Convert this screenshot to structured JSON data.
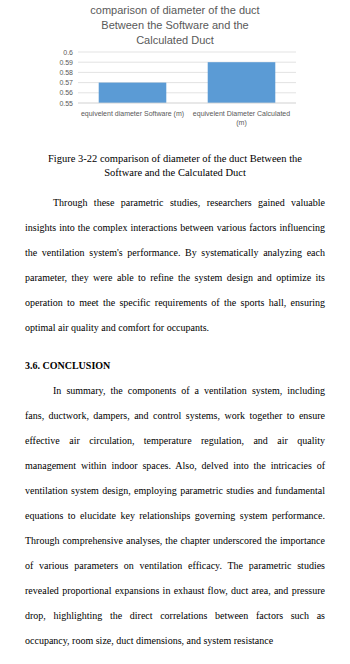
{
  "chart_data": {
    "type": "bar",
    "title": "comparison of diameter of the duct Between the Software and the Calculated Duct",
    "categories": [
      "equivelent diameter Software (m)",
      "equivelent Diameter Calculated (m)"
    ],
    "values": [
      0.57,
      0.59
    ],
    "color": "#5b9bd5",
    "ylim": [
      0.55,
      0.6
    ],
    "yticks": [
      0.55,
      0.56,
      0.57,
      0.58,
      0.59,
      0.6
    ],
    "grid": true
  },
  "caption": "Figure 3-22 comparison of diameter of the duct Between the Software and the Calculated Duct",
  "sections": [
    {
      "paragraphs": [
        "Through these parametric studies, researchers gained valuable insights into the complex interactions between various factors influencing the ventilation system's performance. By systematically analyzing each parameter, they were able to refine the system design and optimize its operation to meet the specific requirements of the sports hall, ensuring optimal air quality and comfort for occupants."
      ]
    },
    {
      "heading": "3.6. CONCLUSION",
      "paragraphs": [
        "In summary, the components of a ventilation system, including fans, ductwork, dampers, and control systems, work together to ensure effective air circulation, temperature regulation, and air quality management within indoor spaces. Also, delved into the intricacies of ventilation system design, employing parametric studies and fundamental equations to elucidate key relationships governing system performance. Through comprehensive analyses, the chapter underscored the importance of various parameters on ventilation efficacy. The parametric studies revealed proportional expansions in exhaust flow, duct area, and pressure drop, highlighting the direct correlations between factors such as occupancy, room size, duct dimensions, and system resistance"
      ]
    }
  ]
}
